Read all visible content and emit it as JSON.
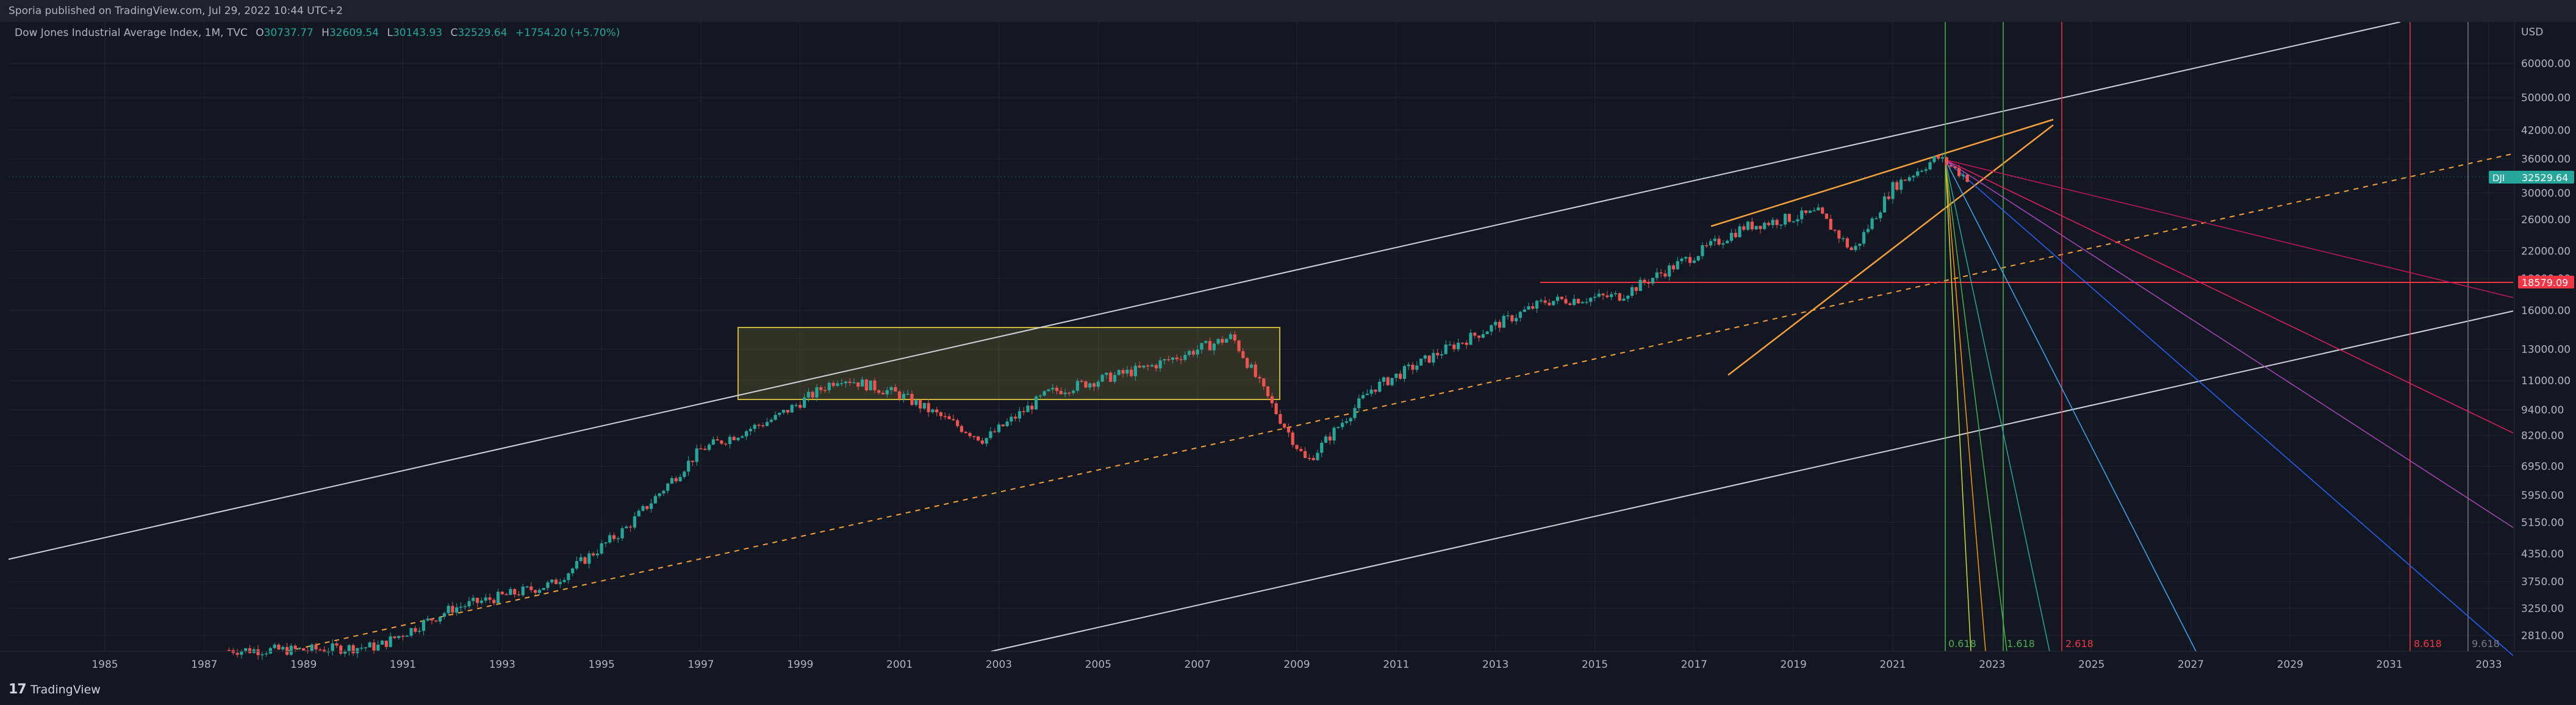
{
  "header": {
    "published_text": "Sporia published on TradingView.com, Jul 29, 2022 10:44 UTC+2"
  },
  "legend": {
    "title": "Dow Jones Industrial Average Index, 1M, TVC",
    "open_label": "O",
    "open_value": "30737.77",
    "high_label": "H",
    "high_value": "32609.54",
    "low_label": "L",
    "low_value": "30143.93",
    "close_label": "C",
    "close_value": "32529.64",
    "change": "+1754.20 (+5.70%)"
  },
  "price_axis": {
    "currency": "USD",
    "ticks": [
      "60000.00",
      "50000.00",
      "42000.00",
      "36000.00",
      "30000.00",
      "26000.00",
      "22000.00",
      "19000.00",
      "16000.00",
      "13000.00",
      "11000.00",
      "9400.00",
      "8200.00",
      "6950.00",
      "5950.00",
      "5150.00",
      "4350.00",
      "3750.00",
      "3250.00",
      "2810.00"
    ],
    "symbol_badge": "DJI",
    "last_price": "32529.64",
    "hline_price": "18579.09",
    "colors": {
      "last_price": "#26a69a",
      "hline": "#f23645"
    }
  },
  "time_axis": {
    "ticks": [
      "1985",
      "1987",
      "1989",
      "1991",
      "1993",
      "1995",
      "1997",
      "1999",
      "2001",
      "2003",
      "2005",
      "2007",
      "2009",
      "2011",
      "2013",
      "2015",
      "2017",
      "2019",
      "2021",
      "2023",
      "2025",
      "2027",
      "2029",
      "2031",
      "2033"
    ]
  },
  "fib_time_labels": {
    "l0618": "0.618",
    "l1618": "1.618",
    "l2618": "2.618",
    "l8618": "8.618",
    "l9618": "9.618"
  },
  "footer": {
    "logo_text": "17",
    "brand": "TradingView"
  },
  "chart_data": {
    "type": "candlestick",
    "title": "Dow Jones Industrial Average Index, 1M, TVC",
    "y_scale": "log",
    "ylim": [
      2500,
      75000
    ],
    "xlim": [
      1983.0,
      2034.3
    ],
    "key_levels": [
      18579.09,
      32529.64
    ],
    "approx_close_path": [
      [
        1987.5,
        2600
      ],
      [
        1989.0,
        2600
      ],
      [
        1990.5,
        2650
      ],
      [
        1992.0,
        3250
      ],
      [
        1994.0,
        3700
      ],
      [
        1995.5,
        5000
      ],
      [
        1997.0,
        7600
      ],
      [
        1998.5,
        9000
      ],
      [
        1999.8,
        11200
      ],
      [
        2001.0,
        10200
      ],
      [
        2002.7,
        8000
      ],
      [
        2004.0,
        10300
      ],
      [
        2006.0,
        11800
      ],
      [
        2007.7,
        13900
      ],
      [
        2008.6,
        9200
      ],
      [
        2009.2,
        7100
      ],
      [
        2010.5,
        10500
      ],
      [
        2012.0,
        13000
      ],
      [
        2014.0,
        16800
      ],
      [
        2015.5,
        17300
      ],
      [
        2017.0,
        21500
      ],
      [
        2018.0,
        25000
      ],
      [
        2019.5,
        27000
      ],
      [
        2020.2,
        21900
      ],
      [
        2021.0,
        31000
      ],
      [
        2021.9,
        36300
      ],
      [
        2022.5,
        32529.64
      ]
    ]
  }
}
